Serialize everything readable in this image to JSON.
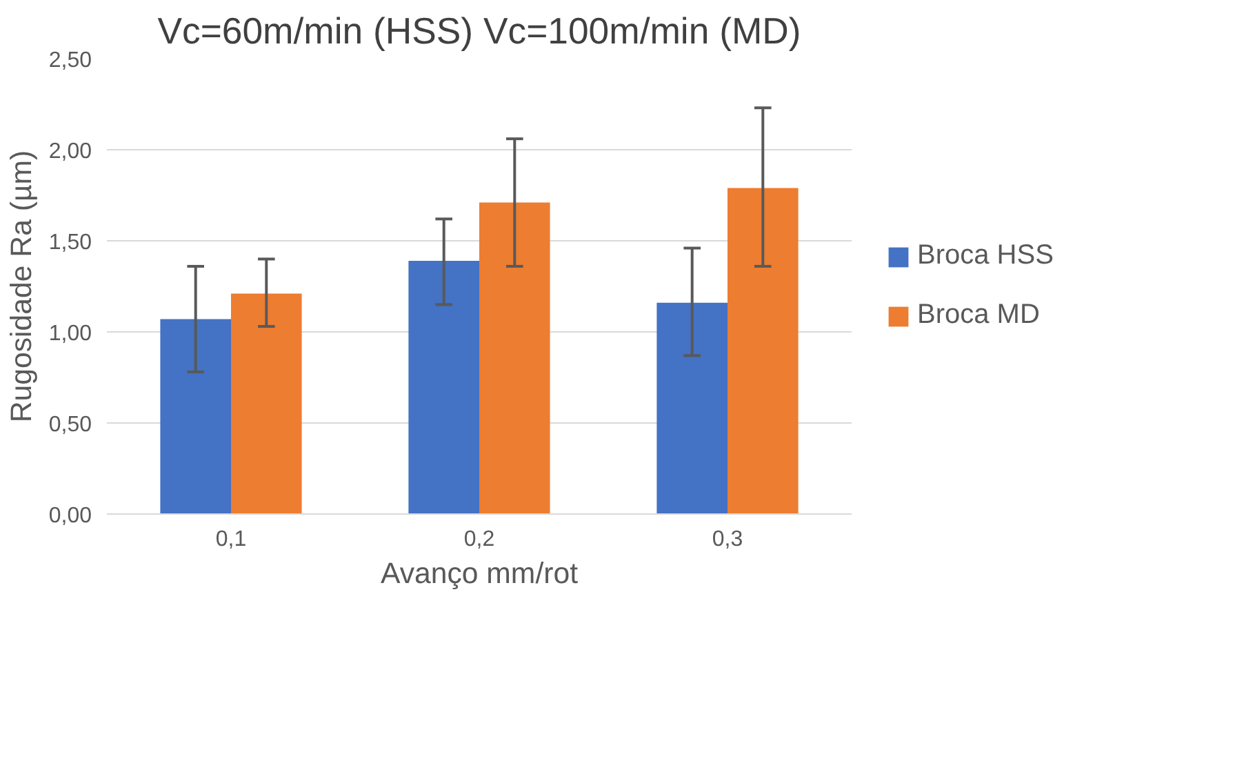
{
  "chart_data": {
    "type": "bar",
    "title": "Vc=60m/min (HSS) Vc=100m/min (MD)",
    "xlabel": "Avanço mm/rot",
    "ylabel": "Rugosidade Ra (µm)",
    "categories": [
      "0,1",
      "0,2",
      "0,3"
    ],
    "series": [
      {
        "name": "Broca HSS",
        "color": "#4472c4",
        "values": [
          1.07,
          1.39,
          1.16
        ],
        "errors": [
          [
            0.78,
            1.36
          ],
          [
            1.15,
            1.62
          ],
          [
            0.87,
            1.46
          ]
        ]
      },
      {
        "name": "Broca MD",
        "color": "#ed7d31",
        "values": [
          1.21,
          1.71,
          1.79
        ],
        "errors": [
          [
            1.03,
            1.4
          ],
          [
            1.36,
            2.06
          ],
          [
            1.36,
            2.23
          ]
        ]
      }
    ],
    "ylim": [
      0,
      2.5
    ],
    "yticks": [
      {
        "value": 0,
        "label": "0,00"
      },
      {
        "value": 0.5,
        "label": "0,50"
      },
      {
        "value": 1,
        "label": "1,00"
      },
      {
        "value": 1.5,
        "label": "1,50"
      },
      {
        "value": 2,
        "label": "2,00"
      },
      {
        "value": 2.5,
        "label": "2,50"
      }
    ],
    "grid": "y",
    "legend": "right"
  }
}
